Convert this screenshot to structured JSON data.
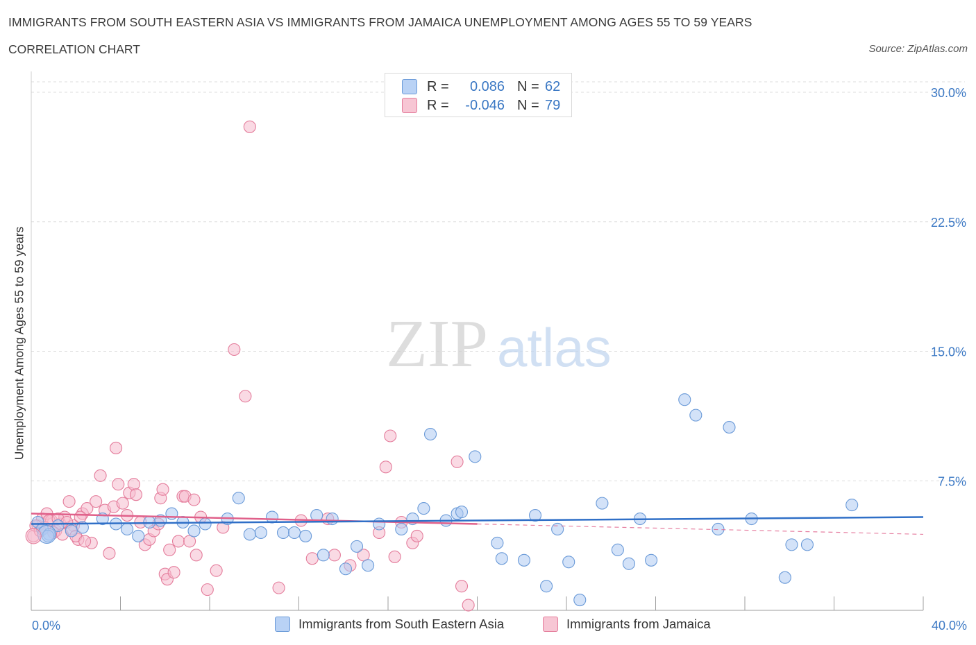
{
  "header": {
    "title": "IMMIGRANTS FROM SOUTH EASTERN ASIA VS IMMIGRANTS FROM JAMAICA UNEMPLOYMENT AMONG AGES 55 TO 59 YEARS",
    "subtitle": "CORRELATION CHART",
    "source": "Source: ZipAtlas.com"
  },
  "watermark": {
    "zip": "ZIP",
    "atlas": "atlas"
  },
  "legend": {
    "rows": [
      {
        "r_label": "R =",
        "r_value": "0.086",
        "n_label": "N =",
        "n_value": "62"
      },
      {
        "r_label": "R =",
        "r_value": "-0.046",
        "n_label": "N =",
        "n_value": "79"
      }
    ]
  },
  "colors": {
    "blue_fill": "#aecbf3",
    "blue_stroke": "#6a9ad8",
    "blue_line": "#2f6fc7",
    "pink_fill": "#f6bccd",
    "pink_stroke": "#e47c9b",
    "pink_line": "#e0608a",
    "axis_text": "#3b78c4",
    "grid": "#dddddd"
  },
  "chart_data": {
    "type": "scatter",
    "title": "IMMIGRANTS FROM SOUTH EASTERN ASIA VS IMMIGRANTS FROM JAMAICA UNEMPLOYMENT AMONG AGES 55 TO 59 YEARS",
    "xlabel": "",
    "ylabel": "Unemployment Among Ages 55 to 59 years",
    "xlim": [
      0,
      40
    ],
    "ylim": [
      0,
      30
    ],
    "x_tick_labels": [
      "0.0%",
      "40.0%"
    ],
    "y_ticks": [
      7.5,
      15.0,
      22.5,
      30.0
    ],
    "y_tick_labels": [
      "7.5%",
      "15.0%",
      "22.5%",
      "30.0%"
    ],
    "grid": true,
    "legend_position": "top-center",
    "series": [
      {
        "name": "Immigrants from South Eastern Asia",
        "color": "#aecbf3",
        "trend": {
          "x": [
            0,
            40
          ],
          "y": [
            5.0,
            5.4
          ]
        },
        "points": [
          [
            0.3,
            5.1
          ],
          [
            0.5,
            4.7
          ],
          [
            0.8,
            4.4
          ],
          [
            1.2,
            4.9
          ],
          [
            1.8,
            4.6
          ],
          [
            2.3,
            4.8
          ],
          [
            3.2,
            5.3
          ],
          [
            3.8,
            5.0
          ],
          [
            4.3,
            4.7
          ],
          [
            4.8,
            4.3
          ],
          [
            5.3,
            5.1
          ],
          [
            5.8,
            5.2
          ],
          [
            6.3,
            5.6
          ],
          [
            6.8,
            5.1
          ],
          [
            7.3,
            4.6
          ],
          [
            7.8,
            5.0
          ],
          [
            8.8,
            5.3
          ],
          [
            9.3,
            6.5
          ],
          [
            9.8,
            4.4
          ],
          [
            10.3,
            4.5
          ],
          [
            10.8,
            5.4
          ],
          [
            11.3,
            4.5
          ],
          [
            11.8,
            4.5
          ],
          [
            12.3,
            4.3
          ],
          [
            12.8,
            5.5
          ],
          [
            13.1,
            3.2
          ],
          [
            13.5,
            5.3
          ],
          [
            14.1,
            2.4
          ],
          [
            14.6,
            3.7
          ],
          [
            15.1,
            2.6
          ],
          [
            15.6,
            5.0
          ],
          [
            16.6,
            4.7
          ],
          [
            17.1,
            5.3
          ],
          [
            17.6,
            5.9
          ],
          [
            17.9,
            10.2
          ],
          [
            18.6,
            5.2
          ],
          [
            19.1,
            5.6
          ],
          [
            19.3,
            5.7
          ],
          [
            19.9,
            8.9
          ],
          [
            20.9,
            3.9
          ],
          [
            21.1,
            3.0
          ],
          [
            22.1,
            2.9
          ],
          [
            22.6,
            5.5
          ],
          [
            23.1,
            1.4
          ],
          [
            23.6,
            4.7
          ],
          [
            24.1,
            2.8
          ],
          [
            24.6,
            0.6
          ],
          [
            25.6,
            6.2
          ],
          [
            26.3,
            3.5
          ],
          [
            26.8,
            2.7
          ],
          [
            27.3,
            5.3
          ],
          [
            27.8,
            2.9
          ],
          [
            29.3,
            12.2
          ],
          [
            29.8,
            11.3
          ],
          [
            30.8,
            4.7
          ],
          [
            31.3,
            10.6
          ],
          [
            32.3,
            5.3
          ],
          [
            33.8,
            1.9
          ],
          [
            34.1,
            3.8
          ],
          [
            34.8,
            3.8
          ],
          [
            36.8,
            6.1
          ],
          [
            0.75,
            4.3
          ]
        ]
      },
      {
        "name": "Immigrants from Jamaica",
        "color": "#f6bccd",
        "trend": {
          "x": [
            0,
            20
          ],
          "y": [
            5.6,
            5.0
          ]
        },
        "trend_extension": {
          "x": [
            20,
            40
          ],
          "y": [
            5.0,
            4.4
          ]
        },
        "points": [
          [
            0.1,
            4.3
          ],
          [
            0.3,
            4.9
          ],
          [
            0.5,
            5.3
          ],
          [
            0.7,
            5.6
          ],
          [
            0.9,
            5.2
          ],
          [
            1.1,
            4.6
          ],
          [
            1.3,
            5.0
          ],
          [
            1.5,
            5.4
          ],
          [
            1.7,
            6.3
          ],
          [
            1.9,
            4.9
          ],
          [
            2.1,
            4.1
          ],
          [
            2.3,
            5.6
          ],
          [
            2.5,
            5.9
          ],
          [
            2.7,
            3.9
          ],
          [
            2.9,
            6.3
          ],
          [
            3.1,
            7.8
          ],
          [
            3.3,
            5.8
          ],
          [
            3.5,
            3.3
          ],
          [
            3.7,
            6.0
          ],
          [
            3.8,
            9.4
          ],
          [
            3.9,
            7.3
          ],
          [
            4.1,
            6.2
          ],
          [
            4.3,
            5.5
          ],
          [
            4.4,
            6.8
          ],
          [
            4.6,
            7.3
          ],
          [
            4.7,
            6.7
          ],
          [
            4.9,
            5.1
          ],
          [
            5.1,
            3.8
          ],
          [
            5.3,
            4.1
          ],
          [
            5.5,
            4.6
          ],
          [
            5.7,
            5.0
          ],
          [
            5.8,
            6.5
          ],
          [
            5.9,
            7.0
          ],
          [
            6.0,
            2.1
          ],
          [
            6.1,
            1.8
          ],
          [
            6.2,
            3.5
          ],
          [
            6.4,
            2.2
          ],
          [
            6.6,
            4.0
          ],
          [
            6.8,
            6.6
          ],
          [
            6.9,
            6.6
          ],
          [
            7.1,
            4.0
          ],
          [
            7.3,
            6.4
          ],
          [
            7.4,
            3.2
          ],
          [
            7.6,
            5.4
          ],
          [
            7.9,
            1.2
          ],
          [
            8.3,
            2.3
          ],
          [
            8.6,
            4.8
          ],
          [
            9.1,
            15.1
          ],
          [
            9.6,
            12.4
          ],
          [
            9.8,
            28.0
          ],
          [
            11.1,
            1.3
          ],
          [
            12.1,
            5.2
          ],
          [
            12.6,
            3.0
          ],
          [
            13.3,
            5.3
          ],
          [
            13.6,
            3.2
          ],
          [
            14.3,
            2.6
          ],
          [
            14.9,
            3.2
          ],
          [
            15.6,
            4.5
          ],
          [
            15.9,
            8.3
          ],
          [
            16.1,
            10.1
          ],
          [
            16.3,
            3.1
          ],
          [
            16.6,
            5.1
          ],
          [
            17.1,
            3.9
          ],
          [
            17.3,
            4.3
          ],
          [
            19.1,
            8.6
          ],
          [
            19.3,
            1.4
          ],
          [
            19.6,
            0.3
          ],
          [
            0.2,
            4.9
          ],
          [
            0.4,
            4.6
          ],
          [
            0.6,
            4.8
          ],
          [
            0.8,
            5.2
          ],
          [
            1.0,
            4.5
          ],
          [
            1.2,
            5.3
          ],
          [
            1.4,
            4.4
          ],
          [
            1.6,
            5.1
          ],
          [
            1.8,
            4.7
          ],
          [
            2.0,
            4.3
          ],
          [
            2.2,
            5.4
          ],
          [
            2.4,
            4.0
          ]
        ]
      }
    ]
  },
  "bottom_legend": {
    "items": [
      {
        "label": "Immigrants from South Eastern Asia"
      },
      {
        "label": "Immigrants from Jamaica"
      }
    ]
  }
}
